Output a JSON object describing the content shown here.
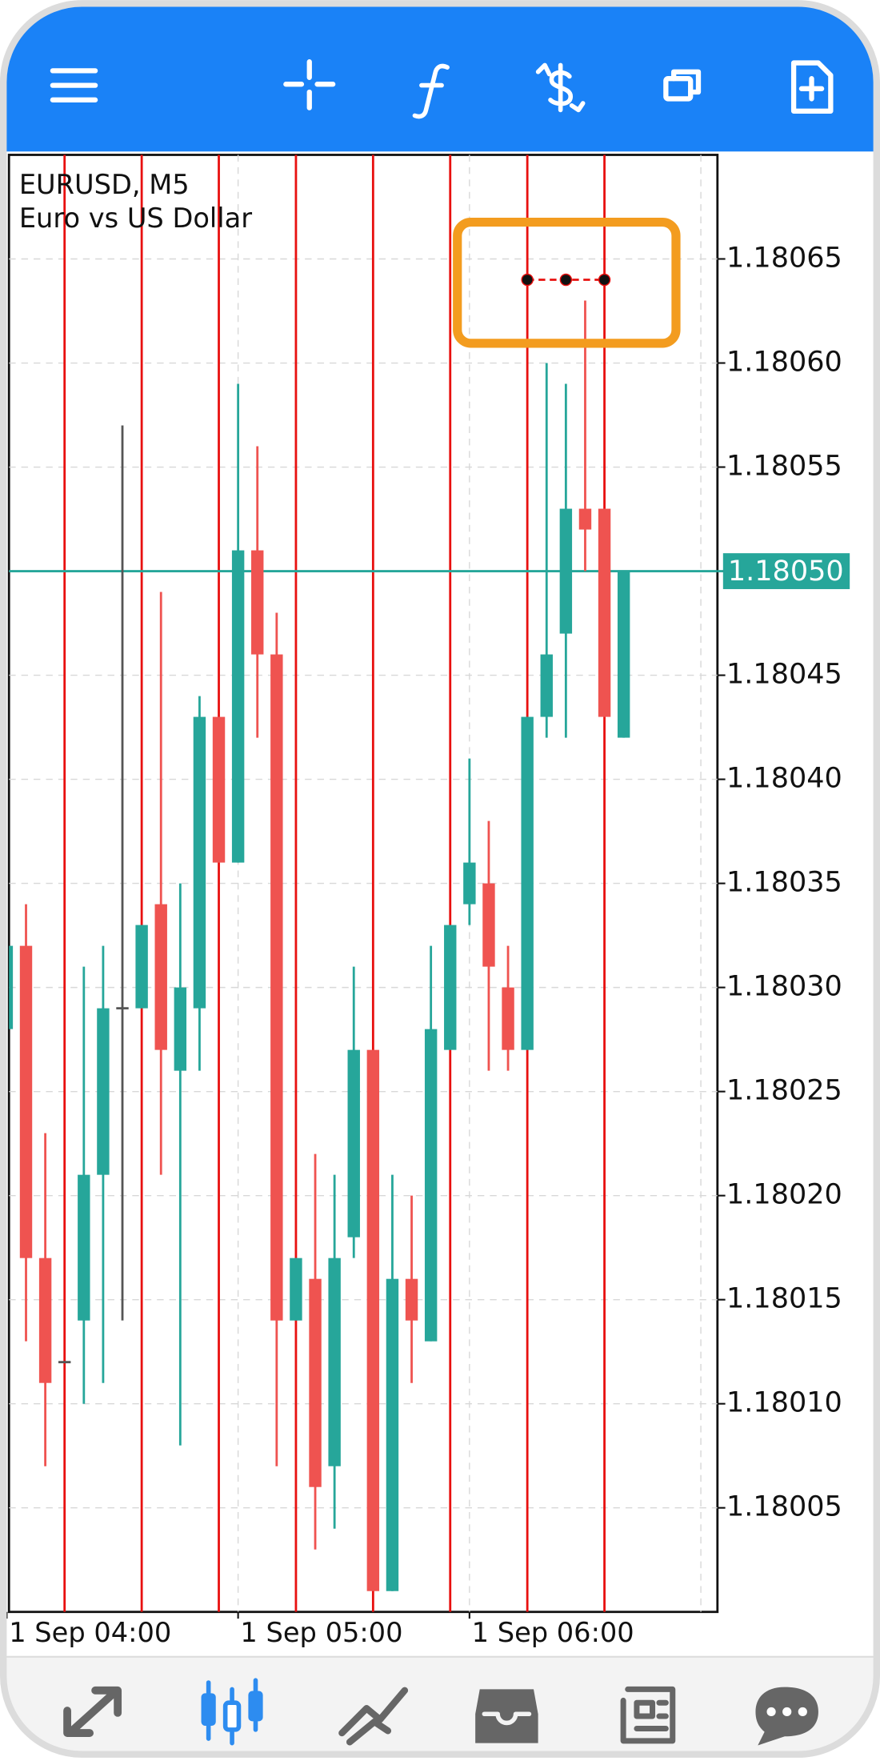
{
  "chart_data": {
    "type": "candlestick",
    "title": "EURUSD, M5",
    "subtitle": "Euro vs US Dollar",
    "categories": [
      "1 Sep 04:00",
      null,
      null,
      null,
      null,
      null,
      null,
      null,
      null,
      null,
      null,
      null,
      "1 Sep 05:00",
      null,
      null,
      null,
      null,
      null,
      null,
      null,
      null,
      null,
      null,
      null,
      "1 Sep 06:00",
      null,
      null,
      null,
      null,
      null,
      null,
      null,
      null
    ],
    "open": [
      1.18028,
      1.18032,
      1.18017,
      1.18012,
      1.18014,
      1.18021,
      1.18029,
      1.18029,
      1.18034,
      1.18026,
      1.18029,
      1.18043,
      1.18036,
      1.18051,
      1.18046,
      1.18014,
      1.18016,
      1.18007,
      1.18018,
      1.18027,
      1.18001,
      1.18016,
      1.18013,
      1.18027,
      1.18034,
      1.18035,
      1.1803,
      1.18027,
      1.18043,
      1.18047,
      1.18053,
      1.18053,
      1.18042
    ],
    "high": [
      1.18032,
      1.18034,
      1.18023,
      1.18012,
      1.18031,
      1.18032,
      1.18057,
      1.18033,
      1.18049,
      1.18035,
      1.18044,
      1.18043,
      1.18059,
      1.18056,
      1.18048,
      1.18017,
      1.18022,
      1.18021,
      1.18031,
      1.18027,
      1.18021,
      1.1802,
      1.18032,
      1.18033,
      1.18041,
      1.18038,
      1.18032,
      1.18043,
      1.1806,
      1.18059,
      1.18063,
      1.18053,
      1.1805
    ],
    "low": [
      1.18028,
      1.18013,
      1.18007,
      1.18012,
      1.1801,
      1.18011,
      1.18014,
      1.18029,
      1.18021,
      1.18008,
      1.18026,
      1.18036,
      1.18036,
      1.18042,
      1.18007,
      1.18014,
      1.18003,
      1.18004,
      1.18017,
      1.18001,
      1.18001,
      1.18011,
      1.18013,
      1.18027,
      1.18033,
      1.18026,
      1.18026,
      1.18027,
      1.18042,
      1.18042,
      1.1805,
      1.18043,
      1.18042
    ],
    "close": [
      1.18032,
      1.18017,
      1.18011,
      1.18012,
      1.18021,
      1.18029,
      1.18029,
      1.18033,
      1.18027,
      1.1803,
      1.18043,
      1.18036,
      1.18051,
      1.18046,
      1.18014,
      1.18017,
      1.18006,
      1.18017,
      1.18027,
      1.18001,
      1.18016,
      1.18014,
      1.18028,
      1.18033,
      1.18036,
      1.18031,
      1.18027,
      1.18043,
      1.18046,
      1.18053,
      1.18052,
      1.18043,
      1.1805
    ],
    "up_color": "#26a69a",
    "down_color": "#ef5350",
    "flat_color": "#555555",
    "marker_values": [
      null,
      null,
      null,
      null,
      null,
      null,
      null,
      null,
      null,
      null,
      null,
      null,
      null,
      null,
      null,
      null,
      null,
      null,
      null,
      null,
      null,
      null,
      null,
      null,
      null,
      null,
      null,
      1.18064,
      null,
      1.18064,
      null,
      1.18064,
      null
    ],
    "ylim": [
      1.18,
      1.1807
    ],
    "yticks": [
      1.18005,
      {
        "value": 1.1801,
        "label": "1.18010"
      },
      1.18015,
      {
        "value": 1.1802,
        "label": "1.18020"
      },
      1.18025,
      {
        "value": 1.1803,
        "label": "1.18030"
      },
      1.18035,
      {
        "value": 1.1804,
        "label": "1.18040"
      },
      1.18045,
      {
        "value": 1.1805,
        "label": "1.18050"
      },
      1.18055,
      {
        "value": 1.1806,
        "label": "1.18060"
      },
      1.18065
    ],
    "last_price": {
      "value": 1.1805,
      "label": "1.18050"
    },
    "grid": true
  }
}
